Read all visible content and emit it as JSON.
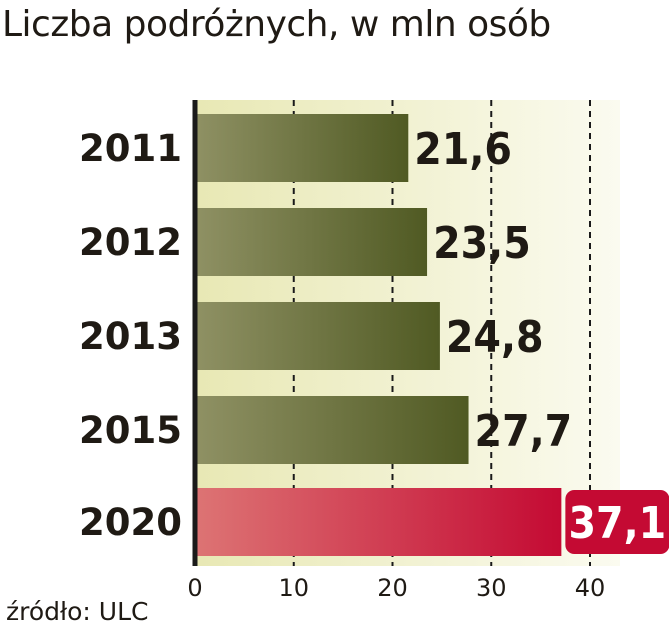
{
  "title": "Liczba podróżnych, w mln osób",
  "source": "źródło: ULC",
  "colors": {
    "bar_dark": "#505a23",
    "bar_light": "#8f9164",
    "highlight_dark": "#c40a33",
    "highlight_light": "#dd7474",
    "plot_bg_left": "#e8e8b4",
    "plot_bg_right": "#fbfbf0",
    "axis": "#1a1a1a",
    "text": "#1f1a14",
    "highlight_label_text": "#ffffff"
  },
  "chart_data": {
    "type": "bar",
    "orientation": "horizontal",
    "title": "Liczba podróżnych, w mln osób",
    "categories": [
      "2011",
      "2012",
      "2013",
      "2015",
      "2020"
    ],
    "values": [
      21.6,
      23.5,
      24.8,
      27.7,
      37.1
    ],
    "value_labels": [
      "21,6",
      "23,5",
      "24,8",
      "27,7",
      "37,1"
    ],
    "highlight_index": 4,
    "xlim": [
      0,
      40
    ],
    "xticks": [
      0,
      10,
      20,
      30,
      40
    ],
    "xtick_labels": [
      "0",
      "10",
      "20",
      "30",
      "40"
    ],
    "grid": true,
    "grid_style": "dashed vertical",
    "xlabel": "",
    "ylabel": ""
  }
}
